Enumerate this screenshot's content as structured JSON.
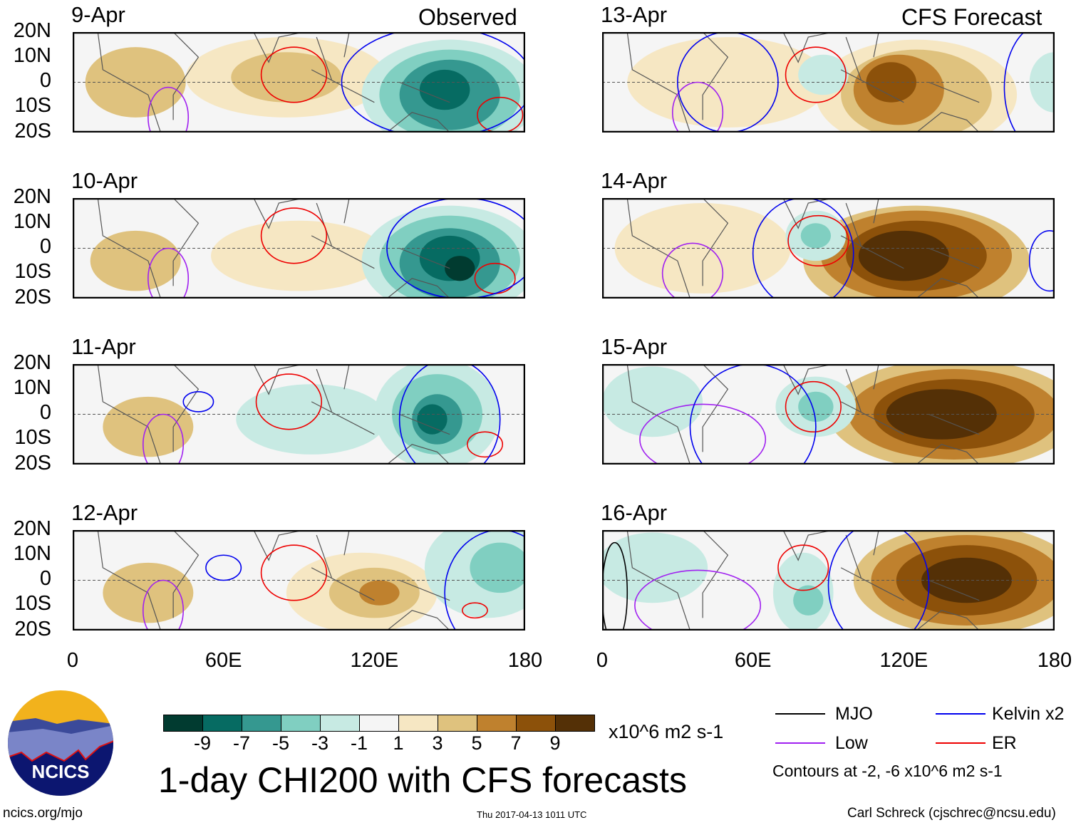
{
  "headings": {
    "left": "Observed",
    "right": "CFS Forecast"
  },
  "lat_ticks": [
    "20N",
    "10N",
    "0",
    "10S",
    "20S"
  ],
  "lon_ticks": [
    "0",
    "60E",
    "120E",
    "180"
  ],
  "colors": [
    "#013b30",
    "#066b62",
    "#359890",
    "#80cfc1",
    "#c7eae3",
    "#f5f5f5",
    "#f6e7c3",
    "#dfc27e",
    "#bf812e",
    "#8c510a",
    "#543006"
  ],
  "colorbar": {
    "labels": [
      "-9",
      "-7",
      "-5",
      "-3",
      "-1",
      "1",
      "3",
      "5",
      "7",
      "9"
    ],
    "units": "x10^6 m2 s-1"
  },
  "title": "1-day CHI200 with CFS forecasts",
  "legend": {
    "items": [
      {
        "label": "MJO",
        "color": "#000000"
      },
      {
        "label": "Kelvin x2",
        "color": "#0000ee"
      },
      {
        "label": "Low",
        "color": "#a020f0"
      },
      {
        "label": "ER",
        "color": "#ee0000"
      }
    ],
    "note": "Contours at -2, -6 x10^6 m2 s-1"
  },
  "logo": {
    "text": "NCICS"
  },
  "footer": {
    "url": "ncics.org/mjo",
    "timestamp": "Thu 2017-04-13 1011 UTC",
    "credit": "Carl Schreck (cjschrec@ncsu.edu)"
  },
  "panels": [
    {
      "date": "9-Apr",
      "blobs": [
        [
          25,
          0,
          20,
          14,
          7
        ],
        [
          85,
          2,
          40,
          16,
          6
        ],
        [
          85,
          2,
          22,
          10,
          7
        ],
        [
          150,
          -5,
          35,
          22,
          4
        ],
        [
          150,
          -5,
          28,
          18,
          3
        ],
        [
          150,
          -5,
          20,
          14,
          2
        ],
        [
          148,
          -3,
          10,
          8,
          1
        ]
      ],
      "contours": [
        [
          88,
          3,
          13,
          11,
          "#ee0000"
        ],
        [
          170,
          -13,
          9,
          7,
          "#ee0000"
        ],
        [
          38,
          -14,
          8,
          12,
          "#a020f0"
        ],
        [
          145,
          0,
          38,
          22,
          "#0000ee"
        ]
      ]
    },
    {
      "date": "10-Apr",
      "blobs": [
        [
          25,
          -5,
          18,
          12,
          7
        ],
        [
          90,
          -3,
          35,
          14,
          6
        ],
        [
          150,
          -5,
          35,
          22,
          4
        ],
        [
          150,
          -5,
          28,
          18,
          3
        ],
        [
          150,
          -6,
          20,
          14,
          2
        ],
        [
          150,
          -4,
          12,
          9,
          1
        ],
        [
          154,
          -8,
          6,
          5,
          0
        ]
      ],
      "contours": [
        [
          88,
          5,
          13,
          11,
          "#ee0000"
        ],
        [
          168,
          -12,
          8,
          6,
          "#ee0000"
        ],
        [
          38,
          -12,
          8,
          12,
          "#a020f0"
        ],
        [
          155,
          0,
          30,
          20,
          "#0000ee"
        ]
      ]
    },
    {
      "date": "11-Apr",
      "blobs": [
        [
          30,
          -5,
          18,
          12,
          7
        ],
        [
          95,
          -2,
          30,
          14,
          4
        ],
        [
          145,
          0,
          25,
          22,
          4
        ],
        [
          145,
          0,
          18,
          16,
          3
        ],
        [
          145,
          -2,
          10,
          10,
          2
        ],
        [
          143,
          -2,
          6,
          6,
          1
        ]
      ],
      "contours": [
        [
          86,
          5,
          13,
          11,
          "#ee0000"
        ],
        [
          164,
          -12,
          7,
          5,
          "#ee0000"
        ],
        [
          36,
          -12,
          8,
          12,
          "#a020f0"
        ],
        [
          150,
          -2,
          20,
          24,
          "#0000ee"
        ],
        [
          50,
          5,
          6,
          4,
          "#0000ee"
        ]
      ]
    },
    {
      "date": "12-Apr",
      "blobs": [
        [
          30,
          -5,
          18,
          12,
          7
        ],
        [
          115,
          -5,
          30,
          16,
          6
        ],
        [
          120,
          -5,
          18,
          10,
          7
        ],
        [
          122,
          -5,
          8,
          5,
          8
        ],
        [
          165,
          5,
          25,
          20,
          4
        ],
        [
          170,
          5,
          12,
          10,
          3
        ]
      ],
      "contours": [
        [
          88,
          3,
          13,
          11,
          "#ee0000"
        ],
        [
          160,
          -12,
          5,
          3,
          "#ee0000"
        ],
        [
          36,
          -12,
          8,
          12,
          "#a020f0"
        ],
        [
          60,
          5,
          7,
          5,
          "#0000ee"
        ],
        [
          170,
          -5,
          22,
          25,
          "#0000ee"
        ]
      ]
    },
    {
      "date": "13-Apr",
      "blobs": [
        [
          50,
          0,
          40,
          18,
          6
        ],
        [
          125,
          -5,
          40,
          22,
          6
        ],
        [
          125,
          -5,
          30,
          18,
          7
        ],
        [
          118,
          -3,
          18,
          14,
          8
        ],
        [
          115,
          0,
          10,
          8,
          9
        ],
        [
          88,
          3,
          10,
          8,
          4
        ],
        [
          180,
          0,
          10,
          12,
          4
        ]
      ],
      "contours": [
        [
          85,
          3,
          12,
          11,
          "#ee0000"
        ],
        [
          38,
          -12,
          10,
          12,
          "#a020f0"
        ],
        [
          50,
          0,
          20,
          20,
          "#0000ee"
        ],
        [
          175,
          -2,
          15,
          25,
          "#0000ee"
        ]
      ]
    },
    {
      "date": "14-Apr",
      "blobs": [
        [
          40,
          0,
          35,
          18,
          6
        ],
        [
          125,
          -5,
          45,
          22,
          7
        ],
        [
          125,
          -3,
          38,
          18,
          8
        ],
        [
          125,
          -3,
          28,
          14,
          9
        ],
        [
          120,
          -3,
          18,
          10,
          10
        ],
        [
          85,
          5,
          12,
          10,
          4
        ],
        [
          85,
          5,
          6,
          5,
          3
        ]
      ],
      "contours": [
        [
          86,
          3,
          12,
          10,
          "#ee0000"
        ],
        [
          36,
          -10,
          12,
          12,
          "#a020f0"
        ],
        [
          80,
          -2,
          20,
          22,
          "#0000ee"
        ],
        [
          178,
          -5,
          8,
          12,
          "#0000ee"
        ]
      ]
    },
    {
      "date": "15-Apr",
      "blobs": [
        [
          20,
          5,
          20,
          14,
          4
        ],
        [
          140,
          0,
          50,
          22,
          7
        ],
        [
          140,
          0,
          42,
          18,
          8
        ],
        [
          140,
          0,
          32,
          14,
          9
        ],
        [
          135,
          0,
          22,
          10,
          10
        ],
        [
          85,
          3,
          16,
          12,
          4
        ],
        [
          85,
          3,
          7,
          6,
          3
        ]
      ],
      "contours": [
        [
          84,
          3,
          11,
          10,
          "#ee0000"
        ],
        [
          40,
          -10,
          25,
          14,
          "#a020f0"
        ],
        [
          60,
          -5,
          25,
          25,
          "#0000ee"
        ]
      ]
    },
    {
      "date": "16-Apr",
      "blobs": [
        [
          20,
          5,
          22,
          14,
          4
        ],
        [
          145,
          0,
          45,
          22,
          7
        ],
        [
          145,
          0,
          38,
          18,
          8
        ],
        [
          145,
          0,
          28,
          14,
          9
        ],
        [
          145,
          0,
          18,
          9,
          10
        ],
        [
          80,
          -5,
          12,
          16,
          4
        ],
        [
          82,
          -8,
          6,
          6,
          3
        ]
      ],
      "contours": [
        [
          80,
          5,
          10,
          9,
          "#ee0000"
        ],
        [
          38,
          -10,
          25,
          14,
          "#a020f0"
        ],
        [
          110,
          -2,
          20,
          25,
          "#0000ee"
        ],
        [
          5,
          -5,
          5,
          20,
          "#000000"
        ]
      ]
    }
  ]
}
